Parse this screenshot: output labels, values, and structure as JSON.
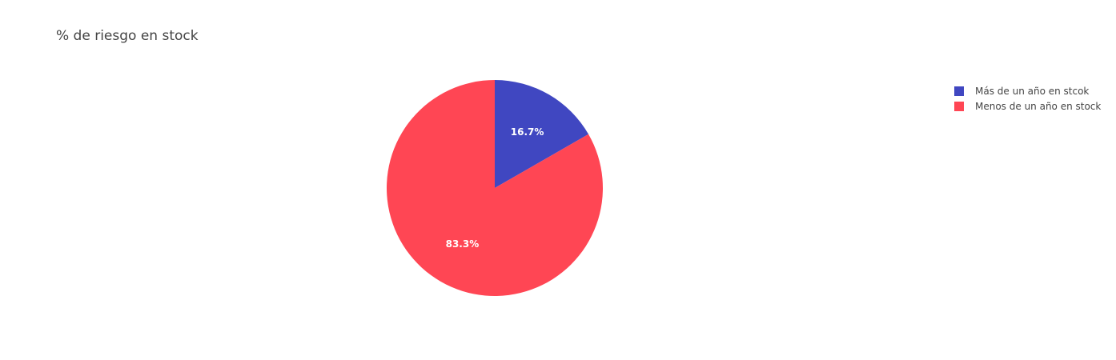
{
  "chart_data": {
    "type": "pie",
    "title": "% de riesgo en stock",
    "labels": [
      "Más de un año en stcok",
      "Menos de un año en stock"
    ],
    "values": [
      16.7,
      83.3
    ],
    "data_labels": [
      "16.7%",
      "83.3%"
    ],
    "colors": [
      "#4047C1",
      "#FF4654"
    ],
    "legend_placement": "top-right",
    "start_angle_deg": 0,
    "direction": "clockwise"
  }
}
